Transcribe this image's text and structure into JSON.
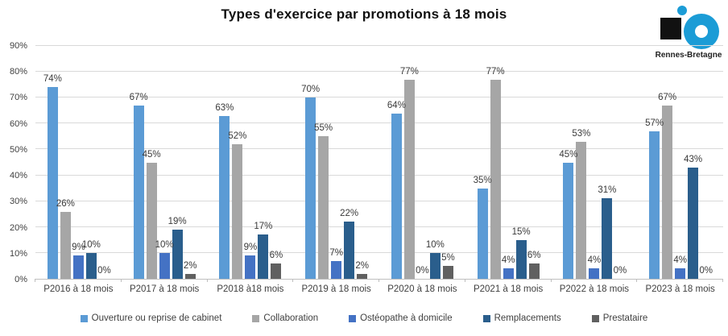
{
  "logo": {
    "brand_text": "Rennes-Bretagne",
    "blue": "#1B9CD6",
    "black": "#111111"
  },
  "chart_data": {
    "type": "bar",
    "title": "Types d'exercice par promotions à 18 mois",
    "categories": [
      "P2016 à 18 mois",
      "P2017 à 18 mois",
      "P2018 à18 mois",
      "P2019 à 18 mois",
      "P2020 à 18 mois",
      "P2021 à 18 mois",
      "P2022 à 18 mois",
      "P2023 à 18 mois"
    ],
    "series": [
      {
        "name": "Ouverture ou reprise de cabinet",
        "color": "#5B9BD5",
        "values": [
          74,
          67,
          63,
          70,
          64,
          35,
          45,
          57
        ]
      },
      {
        "name": "Collaboration",
        "color": "#A6A6A6",
        "values": [
          26,
          45,
          52,
          55,
          77,
          77,
          53,
          67
        ]
      },
      {
        "name": "Ostéopathe à domicile",
        "color": "#4472C4",
        "values": [
          9,
          10,
          9,
          7,
          0,
          4,
          4,
          4
        ]
      },
      {
        "name": "Remplacements",
        "color": "#2A5E8C",
        "values": [
          10,
          19,
          17,
          22,
          10,
          15,
          31,
          43
        ]
      },
      {
        "name": "Prestataire",
        "color": "#606060",
        "values": [
          0,
          2,
          6,
          2,
          5,
          6,
          0,
          0
        ]
      }
    ],
    "ylim": [
      0,
      90
    ],
    "y_ticks": [
      "0%",
      "10%",
      "20%",
      "30%",
      "40%",
      "50%",
      "60%",
      "70%",
      "80%",
      "90%"
    ],
    "data_label_suffix": "%",
    "grid": true,
    "legend_position": "bottom"
  }
}
